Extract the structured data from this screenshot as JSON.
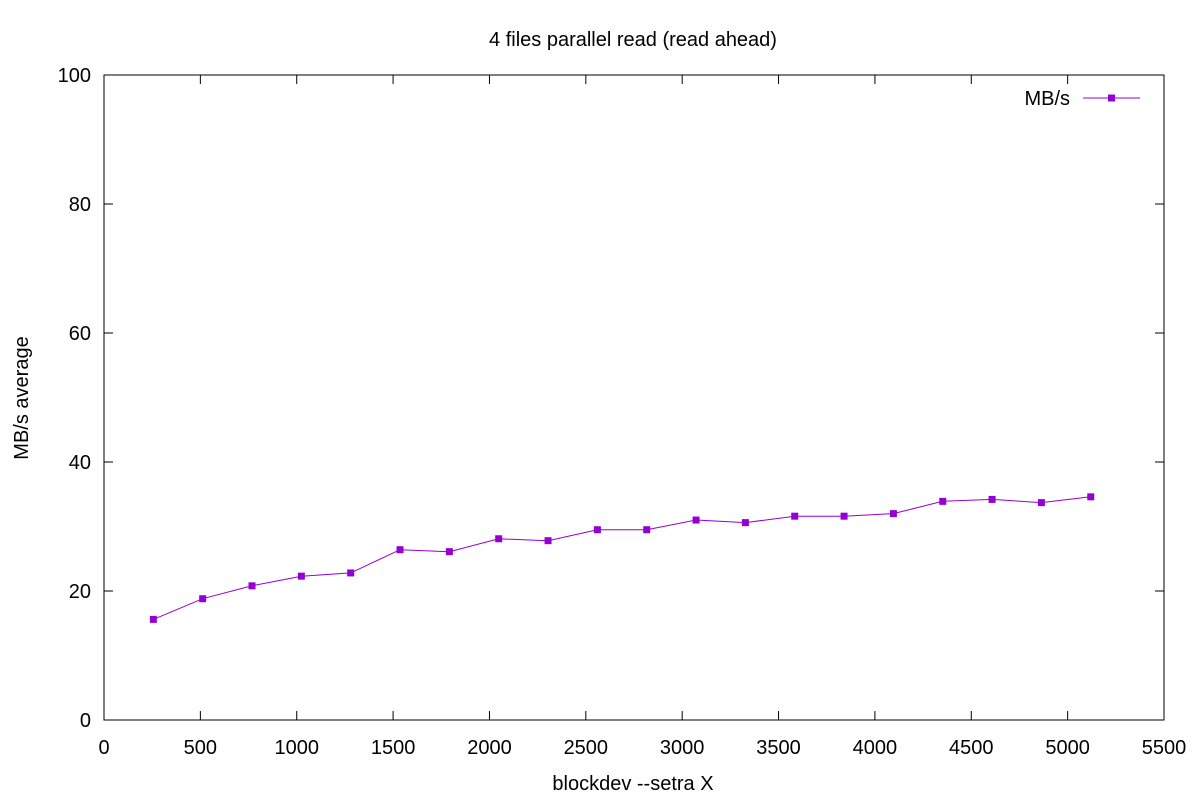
{
  "chart_data": {
    "type": "line",
    "title": "4 files parallel read (read ahead)",
    "xlabel": "blockdev --setra X",
    "ylabel": "MB/s average",
    "xlim": [
      0,
      5500
    ],
    "ylim": [
      0,
      100
    ],
    "xticks": [
      0,
      500,
      1000,
      1500,
      2000,
      2500,
      3000,
      3500,
      4000,
      4500,
      5000,
      5500
    ],
    "yticks": [
      0,
      20,
      40,
      60,
      80,
      100
    ],
    "grid": false,
    "legend_position": "top-right",
    "series": [
      {
        "name": "MB/s",
        "color": "#9400d3",
        "marker": "square",
        "x": [
          256,
          512,
          768,
          1024,
          1280,
          1536,
          1792,
          2048,
          2304,
          2560,
          2816,
          3072,
          3328,
          3584,
          3840,
          4096,
          4352,
          4608,
          4864,
          5120
        ],
        "y": [
          15.6,
          18.8,
          20.8,
          22.3,
          22.8,
          26.4,
          26.1,
          28.1,
          27.8,
          29.5,
          29.5,
          31.0,
          30.6,
          31.6,
          31.6,
          32.0,
          33.9,
          34.2,
          33.7,
          34.6
        ]
      }
    ]
  }
}
